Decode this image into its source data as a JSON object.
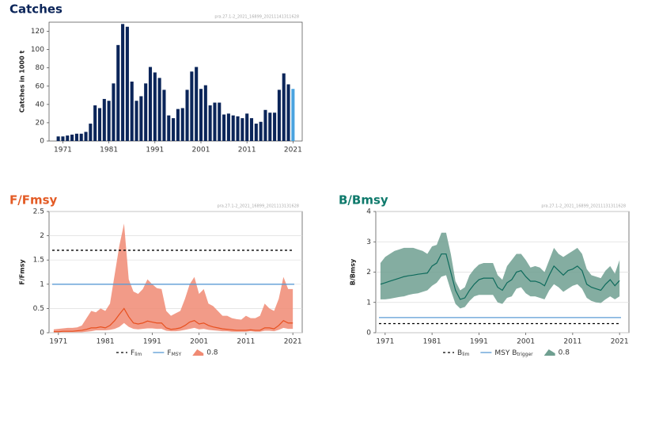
{
  "chart_data": [
    {
      "type": "bar",
      "title": "Catches",
      "watermark": "pra.27.1-2_2021_16899_20211141311628",
      "ylabel": "Catches in 1000 t",
      "x": [
        1970,
        1971,
        1972,
        1973,
        1974,
        1975,
        1976,
        1977,
        1978,
        1979,
        1980,
        1981,
        1982,
        1983,
        1984,
        1985,
        1986,
        1987,
        1988,
        1989,
        1990,
        1991,
        1992,
        1993,
        1994,
        1995,
        1996,
        1997,
        1998,
        1999,
        2000,
        2001,
        2002,
        2003,
        2004,
        2005,
        2006,
        2007,
        2008,
        2009,
        2010,
        2011,
        2012,
        2013,
        2014,
        2015,
        2016,
        2017,
        2018,
        2019,
        2020,
        2021
      ],
      "values": [
        5,
        5,
        6,
        7,
        8,
        8,
        10,
        19,
        39,
        36,
        46,
        44,
        63,
        105,
        128,
        125,
        65,
        44,
        49,
        63,
        81,
        75,
        69,
        56,
        28,
        25,
        35,
        36,
        56,
        76,
        81,
        57,
        61,
        39,
        42,
        42,
        29,
        30,
        28,
        27,
        25,
        30,
        25,
        19,
        21,
        34,
        31,
        31,
        56,
        74,
        62,
        57
      ],
      "color": "#0b2559",
      "last_color": "#4aa3df",
      "xlim": [
        1968,
        2023
      ],
      "xticks": [
        1971,
        1981,
        1991,
        2001,
        2011,
        2021
      ],
      "ylim": [
        0,
        130
      ],
      "yticks": [
        0,
        20,
        40,
        60,
        80,
        100,
        120
      ],
      "grid": false
    },
    {
      "type": "line",
      "title": "F/Fmsy",
      "title_color": "#e35b25",
      "watermark": "pra.27.1-2_2021_16899_2021113131628",
      "ylabel": "F/Fmsy",
      "x": [
        1970,
        1971,
        1972,
        1973,
        1974,
        1975,
        1976,
        1977,
        1978,
        1979,
        1980,
        1981,
        1982,
        1983,
        1984,
        1985,
        1986,
        1987,
        1988,
        1989,
        1990,
        1991,
        1992,
        1993,
        1994,
        1995,
        1996,
        1997,
        1998,
        1999,
        2000,
        2001,
        2002,
        2003,
        2004,
        2005,
        2006,
        2007,
        2008,
        2009,
        2010,
        2011,
        2012,
        2013,
        2014,
        2015,
        2016,
        2017,
        2018,
        2019,
        2020,
        2021
      ],
      "values": [
        0.02,
        0.02,
        0.03,
        0.03,
        0.03,
        0.04,
        0.05,
        0.07,
        0.1,
        0.1,
        0.12,
        0.1,
        0.15,
        0.25,
        0.38,
        0.5,
        0.33,
        0.2,
        0.18,
        0.2,
        0.24,
        0.22,
        0.2,
        0.2,
        0.1,
        0.07,
        0.08,
        0.1,
        0.15,
        0.22,
        0.25,
        0.18,
        0.2,
        0.15,
        0.12,
        0.1,
        0.08,
        0.07,
        0.06,
        0.05,
        0.05,
        0.05,
        0.06,
        0.05,
        0.05,
        0.1,
        0.1,
        0.08,
        0.15,
        0.25,
        0.2,
        0.2
      ],
      "color": "#e8501f",
      "band": {
        "name": "0.8",
        "color": "#f08a73",
        "upper": [
          0.07,
          0.08,
          0.09,
          0.1,
          0.1,
          0.11,
          0.15,
          0.3,
          0.45,
          0.42,
          0.5,
          0.45,
          0.6,
          1.2,
          1.8,
          2.25,
          1.1,
          0.85,
          0.8,
          0.9,
          1.1,
          1.0,
          0.92,
          0.9,
          0.45,
          0.35,
          0.4,
          0.45,
          0.7,
          1.0,
          1.15,
          0.8,
          0.9,
          0.6,
          0.55,
          0.45,
          0.35,
          0.35,
          0.3,
          0.28,
          0.27,
          0.35,
          0.3,
          0.3,
          0.35,
          0.6,
          0.5,
          0.45,
          0.7,
          1.15,
          0.9,
          0.9
        ],
        "lower": [
          0.01,
          0.01,
          0.01,
          0.01,
          0.01,
          0.01,
          0.01,
          0.02,
          0.03,
          0.05,
          0.05,
          0.05,
          0.06,
          0.08,
          0.12,
          0.2,
          0.12,
          0.08,
          0.07,
          0.08,
          0.09,
          0.09,
          0.08,
          0.08,
          0.04,
          0.03,
          0.03,
          0.04,
          0.06,
          0.08,
          0.1,
          0.07,
          0.08,
          0.06,
          0.05,
          0.04,
          0.03,
          0.03,
          0.02,
          0.02,
          0.02,
          0.02,
          0.03,
          0.02,
          0.02,
          0.04,
          0.04,
          0.03,
          0.06,
          0.1,
          0.08,
          0.08
        ]
      },
      "reference_lines": [
        {
          "name": "F",
          "name_sub": "lim",
          "value": 1.7,
          "color": "#000000",
          "dashed": true
        },
        {
          "name": "F",
          "name_sub": "MSY",
          "value": 1,
          "color": "#5b9bd5",
          "dashed": false
        }
      ],
      "xlim": [
        1969,
        2023
      ],
      "xticks": [
        1971,
        1981,
        1991,
        2001,
        2011,
        2021
      ],
      "ylim": [
        0,
        2.5
      ],
      "yticks": [
        0,
        0.5,
        1,
        1.5,
        2,
        2.5
      ],
      "grid": true
    },
    {
      "type": "line",
      "title": "B/Bmsy",
      "title_color": "#0f7a6c",
      "watermark": "pra.27.1-2_2021_16899_20211131311628",
      "ylabel": "B/Bmsy",
      "x": [
        1970,
        1971,
        1972,
        1973,
        1974,
        1975,
        1976,
        1977,
        1978,
        1979,
        1980,
        1981,
        1982,
        1983,
        1984,
        1985,
        1986,
        1987,
        1988,
        1989,
        1990,
        1991,
        1992,
        1993,
        1994,
        1995,
        1996,
        1997,
        1998,
        1999,
        2000,
        2001,
        2002,
        2003,
        2004,
        2005,
        2006,
        2007,
        2008,
        2009,
        2010,
        2011,
        2012,
        2013,
        2014,
        2015,
        2016,
        2017,
        2018,
        2019,
        2020,
        2021
      ],
      "values": [
        1.6,
        1.65,
        1.7,
        1.75,
        1.8,
        1.85,
        1.88,
        1.9,
        1.93,
        1.95,
        1.97,
        2.2,
        2.3,
        2.6,
        2.6,
        2.0,
        1.4,
        1.1,
        1.15,
        1.4,
        1.6,
        1.75,
        1.8,
        1.8,
        1.8,
        1.5,
        1.4,
        1.65,
        1.75,
        2.0,
        2.05,
        1.85,
        1.7,
        1.7,
        1.65,
        1.55,
        1.9,
        2.2,
        2.05,
        1.9,
        2.05,
        2.1,
        2.2,
        2.05,
        1.6,
        1.5,
        1.45,
        1.4,
        1.6,
        1.75,
        1.55,
        1.72
      ],
      "color": "#0e6b5c",
      "band": {
        "name": "0.8",
        "color": "#6f9f90",
        "upper": [
          2.3,
          2.5,
          2.6,
          2.7,
          2.75,
          2.8,
          2.8,
          2.8,
          2.75,
          2.7,
          2.6,
          2.85,
          2.9,
          3.3,
          3.3,
          2.6,
          1.7,
          1.4,
          1.5,
          1.9,
          2.1,
          2.25,
          2.3,
          2.3,
          2.3,
          1.9,
          1.75,
          2.2,
          2.4,
          2.6,
          2.6,
          2.4,
          2.15,
          2.2,
          2.15,
          2.0,
          2.4,
          2.8,
          2.6,
          2.5,
          2.6,
          2.7,
          2.8,
          2.6,
          2.1,
          1.9,
          1.85,
          1.8,
          2.05,
          2.2,
          1.95,
          2.4
        ],
        "lower": [
          1.1,
          1.1,
          1.12,
          1.15,
          1.18,
          1.2,
          1.25,
          1.28,
          1.3,
          1.35,
          1.4,
          1.55,
          1.65,
          1.85,
          1.9,
          1.4,
          0.95,
          0.8,
          0.85,
          1.05,
          1.2,
          1.25,
          1.25,
          1.25,
          1.25,
          1.0,
          0.95,
          1.15,
          1.2,
          1.45,
          1.5,
          1.3,
          1.2,
          1.2,
          1.15,
          1.1,
          1.4,
          1.6,
          1.5,
          1.35,
          1.45,
          1.55,
          1.6,
          1.45,
          1.15,
          1.05,
          1.0,
          0.98,
          1.1,
          1.2,
          1.1,
          1.2
        ]
      },
      "reference_lines": [
        {
          "name": "B",
          "name_sub": "lim",
          "value": 0.3,
          "color": "#000000",
          "dashed": true
        },
        {
          "name": "MSY B",
          "name_sub": "trigger",
          "value": 0.5,
          "color": "#5b9bd5",
          "dashed": false
        }
      ],
      "xlim": [
        1969,
        2023
      ],
      "xticks": [
        1971,
        1981,
        1991,
        2001,
        2011,
        2021
      ],
      "ylim": [
        0,
        4
      ],
      "yticks": [
        0,
        1,
        2,
        3,
        4
      ],
      "grid": true
    }
  ]
}
